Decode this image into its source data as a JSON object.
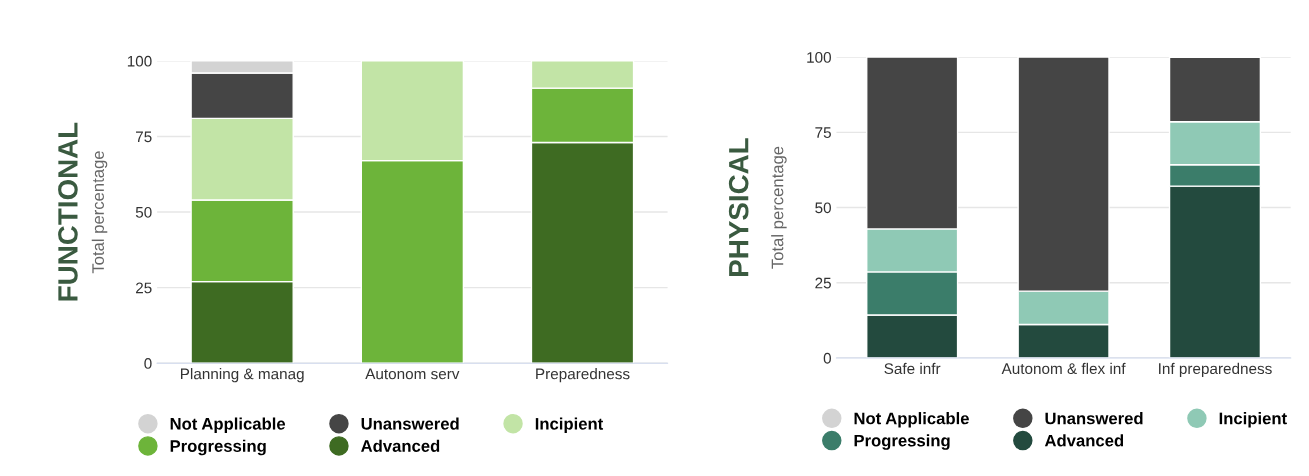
{
  "chart_data": [
    {
      "type": "bar",
      "title": "FUNCTIONAL",
      "ylabel": "Total percentage",
      "categories": [
        "Planning & manag",
        "Autonom serv",
        "Preparedness"
      ],
      "stacked": true,
      "ylim": [
        0,
        100
      ],
      "yticks": [
        0,
        25,
        50,
        75,
        100
      ],
      "grid": "y",
      "legend": "bottom",
      "series": [
        {
          "name": "Advanced",
          "color": "#3e6b22",
          "values": [
            27,
            null,
            73
          ]
        },
        {
          "name": "Progressing",
          "color": "#6db43a",
          "values": [
            27,
            67,
            18
          ]
        },
        {
          "name": "Incipient",
          "color": "#c2e4a6",
          "values": [
            27,
            33,
            9
          ]
        },
        {
          "name": "Unanswered",
          "color": "#454545",
          "values": [
            15,
            null,
            null
          ]
        },
        {
          "name": "Not Applicable",
          "color": "#d3d3d3",
          "values": [
            4,
            null,
            null
          ]
        }
      ]
    },
    {
      "type": "bar",
      "title": "PHYSICAL",
      "ylabel": "Total percentage",
      "categories": [
        "Safe infr",
        "Autonom & flex inf",
        "Inf preparedness"
      ],
      "stacked": true,
      "ylim": [
        0,
        100
      ],
      "yticks": [
        0,
        25,
        50,
        75,
        100
      ],
      "grid": "y",
      "legend": "bottom",
      "series": [
        {
          "name": "Advanced",
          "color": "#234a3e",
          "values": [
            14.3,
            11.1,
            57.1
          ]
        },
        {
          "name": "Progressing",
          "color": "#3b7d6a",
          "values": [
            14.3,
            null,
            7.1
          ]
        },
        {
          "name": "Incipient",
          "color": "#8fc9b5",
          "values": [
            14.3,
            11.1,
            14.3
          ]
        },
        {
          "name": "Unanswered",
          "color": "#454545",
          "values": [
            57.1,
            77.8,
            21.4
          ]
        },
        {
          "name": "Not Applicable",
          "color": "#d3d3d3",
          "values": [
            null,
            null,
            null
          ]
        }
      ]
    }
  ]
}
